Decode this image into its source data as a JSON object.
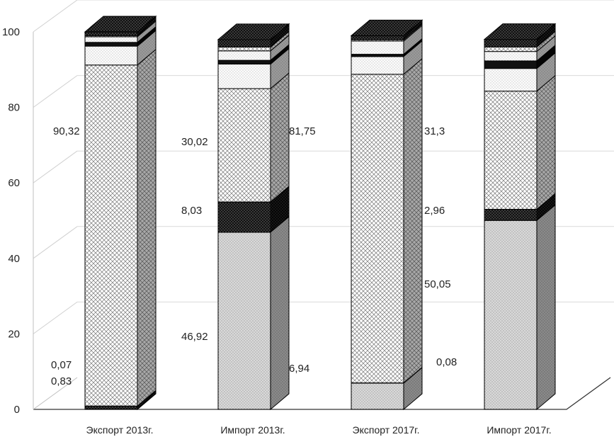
{
  "chart_data": {
    "type": "bar",
    "stacked": true,
    "style": "3d",
    "title": "",
    "xlabel": "",
    "ylabel": "",
    "ylim": [
      0,
      100
    ],
    "yticks": [
      0,
      20,
      40,
      60,
      80,
      100
    ],
    "grid": true,
    "legend": "none",
    "categories": [
      "Экспорт 2013г.",
      "Импорт 2013г.",
      "Экспорт 2017г.",
      "Импорт 2017г."
    ],
    "series": [
      {
        "values": [
          0.07,
          46.92,
          6.94,
          50.05
        ],
        "pattern": "light-dots",
        "color": "#d6d6d6"
      },
      {
        "values": [
          0.83,
          8.03,
          0.08,
          2.96
        ],
        "pattern": "dark-dots",
        "color": "#1a1a1a"
      },
      {
        "values": [
          90.32,
          30.02,
          81.75,
          31.3
        ],
        "pattern": "crosshatch",
        "color": "#ffffff"
      },
      {
        "values": [
          5.0,
          6.5,
          4.7,
          6.0
        ],
        "pattern": "white-dots",
        "color": "#fafafa"
      },
      {
        "values": [
          1.0,
          1.0,
          0.6,
          2.0
        ],
        "pattern": "solid-dark",
        "color": "#111111"
      },
      {
        "values": [
          1.5,
          2.5,
          3.5,
          2.5
        ],
        "pattern": "white-dots",
        "color": "#fafafa"
      },
      {
        "values": [
          0.28,
          1.0,
          0.33,
          1.2
        ],
        "pattern": "crosshatch",
        "color": "#ffffff"
      },
      {
        "values": [
          1.0,
          2.0,
          1.1,
          1.99
        ],
        "pattern": "dark-dots",
        "color": "#1a1a1a"
      }
    ],
    "data_labels": [
      {
        "category": 0,
        "text": "0,07",
        "value": 0.07
      },
      {
        "category": 0,
        "text": "0,83",
        "value": 0.83
      },
      {
        "category": 0,
        "text": "90,32",
        "value": 90.32
      },
      {
        "category": 1,
        "text": "46,92",
        "value": 46.92
      },
      {
        "category": 1,
        "text": "8,03",
        "value": 8.03
      },
      {
        "category": 1,
        "text": "30,02",
        "value": 30.02
      },
      {
        "category": 2,
        "text": "6,94",
        "value": 6.94
      },
      {
        "category": 2,
        "text": "0,08",
        "value": 0.08
      },
      {
        "category": 2,
        "text": "81,75",
        "value": 81.75
      },
      {
        "category": 3,
        "text": "50,05",
        "value": 50.05
      },
      {
        "category": 3,
        "text": "2,96",
        "value": 2.96
      },
      {
        "category": 3,
        "text": "31,3",
        "value": 31.3
      }
    ]
  }
}
